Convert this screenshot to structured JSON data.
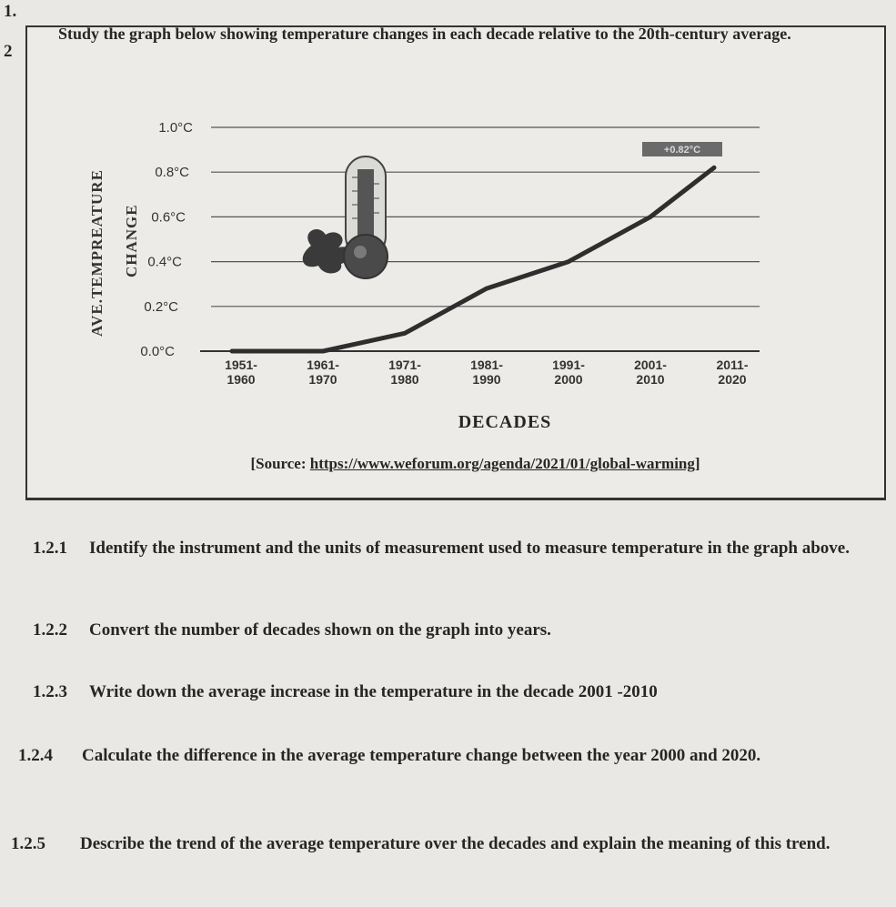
{
  "question_numbers": [
    "1.",
    "2"
  ],
  "intro": "Study the graph below showing temperature changes in each decade relative to the 20th-century average.",
  "chart_data": {
    "type": "line",
    "ylabel_line1": "AVE.TEMPREATURE",
    "ylabel_line2": "CHANGE",
    "xlabel": "DECADES",
    "yticks": [
      "1.0°C",
      "0.8°C",
      "0.6°C",
      "0.4°C",
      "0.2°C",
      "0.0°C"
    ],
    "categories": [
      "1951-1960",
      "1961-1970",
      "1971-1980",
      "1981-1990",
      "1991-2000",
      "2001-2010",
      "2011-2020"
    ],
    "category_lines": [
      [
        "1951-",
        "1960"
      ],
      [
        "1961-",
        "1970"
      ],
      [
        "1971-",
        "1980"
      ],
      [
        "1981-",
        "1990"
      ],
      [
        "1991-",
        "2000"
      ],
      [
        "2001-",
        "2010"
      ],
      [
        "2011-",
        "2020"
      ]
    ],
    "values": [
      0.0,
      0.0,
      0.08,
      0.28,
      0.4,
      0.6,
      0.82
    ],
    "end_label": "+0.82°C",
    "ylim": [
      0,
      1.0
    ],
    "grid": true,
    "line_color": "#2e2e2e"
  },
  "source": {
    "prefix": "[Source: ",
    "url": "https://www.weforum.org/agenda/2021/01/global-warming",
    "suffix": "]"
  },
  "questions": [
    {
      "num": "1.2.1",
      "text": "Identify the instrument and the units of measurement used to measure temperature in the graph above."
    },
    {
      "num": "1.2.2",
      "text": "Convert the number of decades shown on the graph into years."
    },
    {
      "num": "1.2.3",
      "text": "Write down the average increase in the temperature in the decade 2001 -2010"
    },
    {
      "num": "1.2.4",
      "text": "Calculate the difference in the average temperature change between the year 2000 and 2020."
    },
    {
      "num": "1.2.5",
      "text": "Describe the trend of the average temperature over the decades and explain the meaning of this trend."
    }
  ]
}
